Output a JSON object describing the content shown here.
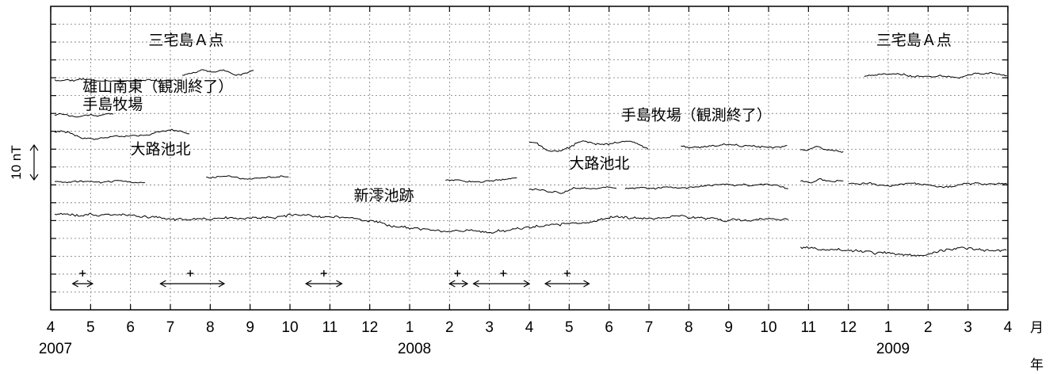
{
  "chart_data": {
    "type": "line",
    "title": "",
    "xlabel_month_unit": "月",
    "xlabel_year_unit": "年",
    "scale_bar_label": "10 nT",
    "x_range": [
      "2007-04-01",
      "2009-04-01"
    ],
    "x_ticks": [
      "4",
      "5",
      "6",
      "7",
      "8",
      "9",
      "10",
      "11",
      "12",
      "1",
      "2",
      "3",
      "4",
      "5",
      "6",
      "7",
      "8",
      "9",
      "10",
      "11",
      "12",
      "1",
      "2",
      "3",
      "4"
    ],
    "year_labels": [
      {
        "text": "2007",
        "month_index": 0
      },
      {
        "text": "2008",
        "month_index": 9
      },
      {
        "text": "2009",
        "month_index": 21
      }
    ],
    "grid": true,
    "horizontal_grid_lines": 16,
    "series": [
      {
        "label": "三宅島Ａ点",
        "segments": [
          {
            "start": 0.1,
            "end": 3.1,
            "level": 1.35,
            "amp": 0.08,
            "noise": 0.06,
            "seed": 1
          },
          {
            "start": 3.3,
            "end": 5.1,
            "level": 1.05,
            "amp": 0.15,
            "noise": 0.07,
            "seed": 2
          },
          {
            "start": 20.4,
            "end": 24.0,
            "level": 1.2,
            "amp": 0.06,
            "noise": 0.06,
            "seed": 3
          }
        ]
      },
      {
        "label": "雄山南東（観測終了）",
        "segments": [
          {
            "start": 0.1,
            "end": 1.6,
            "level": 3.45,
            "amp": 0.08,
            "noise": 0.05,
            "seed": 4
          }
        ]
      },
      {
        "label": "手島牧場",
        "segments": [
          {
            "start": 0.1,
            "end": 3.5,
            "level": 4.45,
            "amp": 0.2,
            "noise": 0.08,
            "seed": 5
          }
        ]
      },
      {
        "label": "手島牧場（観測終了）",
        "segments": [
          {
            "start": 12.0,
            "end": 15.0,
            "level": 5.1,
            "amp": 0.35,
            "noise": 0.09,
            "seed": 6
          },
          {
            "start": 15.8,
            "end": 18.5,
            "level": 5.15,
            "amp": 0.1,
            "noise": 0.07,
            "seed": 7
          },
          {
            "start": 18.8,
            "end": 19.9,
            "level": 5.3,
            "amp": 0.08,
            "noise": 0.07,
            "seed": 8
          }
        ]
      },
      {
        "label": "大路池北",
        "segments": [
          {
            "start": 0.1,
            "end": 2.4,
            "level": 7.1,
            "amp": 0.08,
            "noise": 0.06,
            "seed": 9
          },
          {
            "start": 3.9,
            "end": 6.0,
            "level": 6.9,
            "amp": 0.08,
            "noise": 0.06,
            "seed": 10
          },
          {
            "start": 9.9,
            "end": 11.7,
            "level": 7.05,
            "amp": 0.08,
            "noise": 0.06,
            "seed": 11
          },
          {
            "start": 12.0,
            "end": 14.2,
            "level": 7.55,
            "amp": 0.12,
            "noise": 0.06,
            "seed": 12
          },
          {
            "start": 14.4,
            "end": 18.5,
            "level": 7.45,
            "amp": 0.12,
            "noise": 0.06,
            "seed": 13
          },
          {
            "start": 18.8,
            "end": 19.9,
            "level": 7.05,
            "amp": 0.08,
            "noise": 0.06,
            "seed": 14
          },
          {
            "start": 20.0,
            "end": 24.0,
            "level": 7.25,
            "amp": 0.12,
            "noise": 0.06,
            "seed": 15
          }
        ]
      },
      {
        "label": "新澪池跡",
        "segments": [
          {
            "start": 0.1,
            "end": 18.5,
            "level": 9.3,
            "amp": 0.55,
            "noise": 0.1,
            "seed": 16
          },
          {
            "start": 18.8,
            "end": 24.0,
            "level": 11.0,
            "amp": 0.25,
            "noise": 0.1,
            "seed": 17
          }
        ]
      }
    ],
    "station_labels": [
      {
        "text": "三宅島Ａ点",
        "x_month": 2.45,
        "y_level": 0.0
      },
      {
        "text": "三宅島Ａ点",
        "x_month": 20.7,
        "y_level": 0.0
      },
      {
        "text": "雄山南東（観測終了）",
        "x_month": 0.8,
        "y_level": 2.6
      },
      {
        "text": "手島牧場",
        "x_month": 0.8,
        "y_level": 3.6
      },
      {
        "text": "手島牧場（観測終了）",
        "x_month": 14.3,
        "y_level": 4.2
      },
      {
        "text": "大路池北",
        "x_month": 2.0,
        "y_level": 6.1
      },
      {
        "text": "大路池北",
        "x_month": 13.0,
        "y_level": 6.9
      },
      {
        "text": "新澪池跡",
        "x_month": 7.6,
        "y_level": 8.7
      }
    ],
    "interval_markers": [
      {
        "start": 0.55,
        "end": 1.05,
        "mark": 0.8
      },
      {
        "start": 2.75,
        "end": 4.35,
        "mark": 3.5
      },
      {
        "start": 6.4,
        "end": 7.3,
        "mark": 6.85
      },
      {
        "start": 10.0,
        "end": 10.45,
        "mark": 10.2
      },
      {
        "start": 10.6,
        "end": 12.0,
        "mark": 11.35
      },
      {
        "start": 12.4,
        "end": 13.5,
        "mark": 12.95
      }
    ]
  }
}
